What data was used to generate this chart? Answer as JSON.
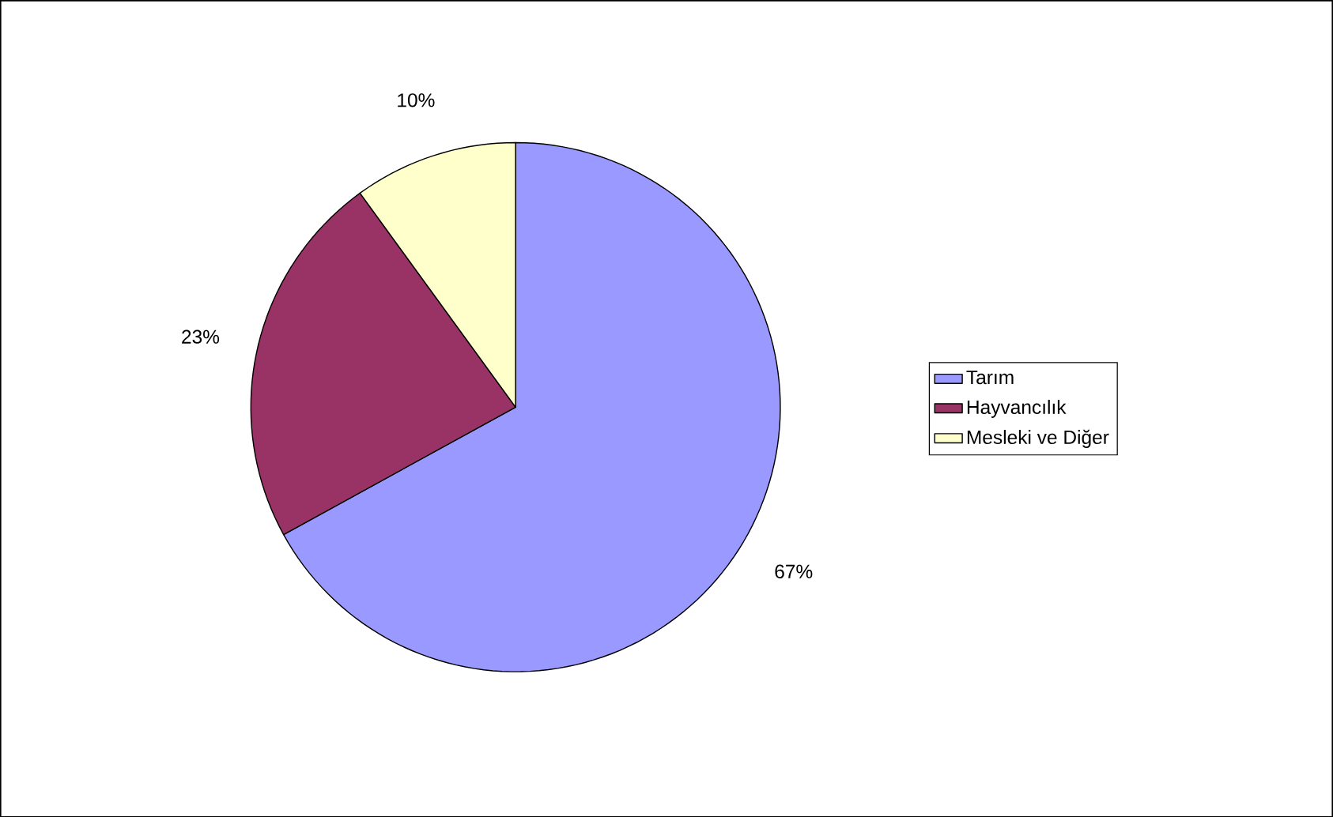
{
  "chart_data": {
    "type": "pie",
    "categories": [
      "Tarım",
      "Hayvancılık",
      "Mesleki ve Diğer"
    ],
    "values": [
      67,
      23,
      10
    ],
    "colors": [
      "#9999ff",
      "#993366",
      "#ffffcc"
    ],
    "value_labels": [
      "67%",
      "23%",
      "10%"
    ],
    "legend": "right"
  }
}
